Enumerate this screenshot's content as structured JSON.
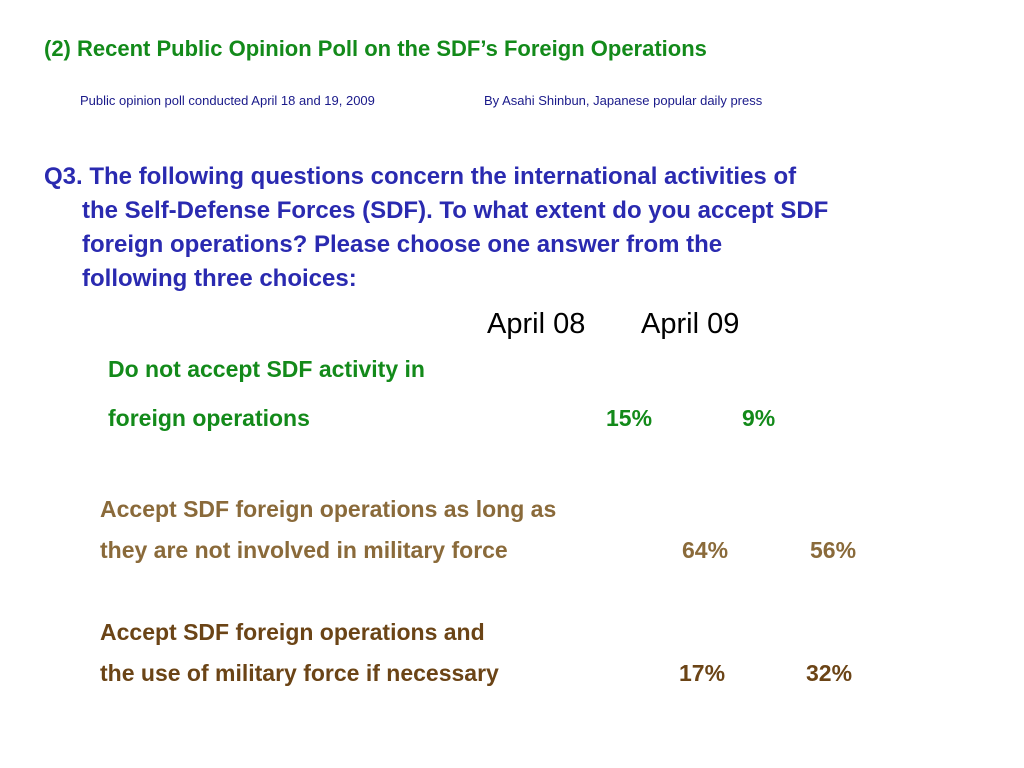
{
  "title": "(2) Recent Public Opinion Poll on the SDF’s Foreign Operations",
  "source": {
    "poll": "Public opinion poll conducted April 18 and 19, 2009",
    "publisher": "By Asahi Shinbun, Japanese popular daily press"
  },
  "question": {
    "line1": "Q3.  The following questions concern the international activities of",
    "line2": "the Self-Defense Forces (SDF).  To what extent do you accept SDF",
    "line3": "foreign operations?  Please choose one answer from the",
    "line4": "following three choices:"
  },
  "columns": [
    "April 08",
    "April 09"
  ],
  "answers": [
    {
      "line1": "Do not accept SDF activity in",
      "line2": "foreign operations",
      "apr08": "15%",
      "apr09": "9%"
    },
    {
      "line1": "Accept SDF foreign operations as long as",
      "line2": "they are not involved in military force",
      "apr08": "64%",
      "apr09": "56%"
    },
    {
      "line1": "Accept SDF foreign operations and",
      "line2": "the use of military force if necessary",
      "apr08": "17%",
      "apr09": "32%"
    }
  ],
  "colors": {
    "title": "#138a1a",
    "question": "#2a2ab0",
    "answer1": "#138a1a",
    "answer2": "#8a6a3a",
    "answer3": "#6b4416"
  }
}
